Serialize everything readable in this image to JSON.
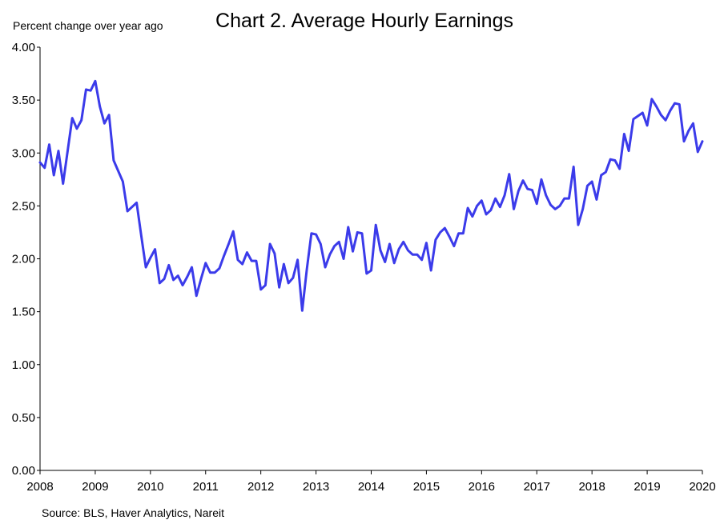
{
  "chart_data": {
    "type": "line",
    "title": "Chart 2. Average Hourly Earnings",
    "ylabel": "Percent change over year ago",
    "xlabel": "",
    "source": "Source: BLS, Haver Analytics, Nareit",
    "ylim": [
      0,
      4
    ],
    "xlim": [
      2008,
      2020
    ],
    "y_ticks": [
      "0.00",
      "0.50",
      "1.00",
      "1.50",
      "2.00",
      "2.50",
      "3.00",
      "3.50",
      "4.00"
    ],
    "x_ticks": [
      "2008",
      "2009",
      "2010",
      "2011",
      "2012",
      "2013",
      "2014",
      "2015",
      "2016",
      "2017",
      "2018",
      "2019",
      "2020"
    ],
    "grid": false,
    "color": "#3b3bea",
    "series": [
      {
        "x_start": "2008-01",
        "frequency": "monthly",
        "values": [
          2.91,
          2.86,
          3.08,
          2.79,
          3.02,
          2.71,
          3.02,
          3.33,
          3.23,
          3.31,
          3.6,
          3.59,
          3.68,
          3.44,
          3.28,
          3.36,
          2.93,
          2.83,
          2.73,
          2.45,
          2.49,
          2.53,
          2.22,
          1.92,
          2.01,
          2.09,
          1.77,
          1.81,
          1.94,
          1.8,
          1.84,
          1.75,
          1.83,
          1.92,
          1.65,
          1.81,
          1.96,
          1.87,
          1.87,
          1.91,
          2.03,
          2.14,
          2.26,
          1.99,
          1.95,
          2.06,
          1.98,
          1.98,
          1.71,
          1.75,
          2.14,
          2.05,
          1.73,
          1.95,
          1.77,
          1.82,
          1.99,
          1.51,
          1.9,
          2.24,
          2.23,
          2.14,
          1.92,
          2.04,
          2.12,
          2.16,
          2.0,
          2.3,
          2.07,
          2.25,
          2.24,
          1.86,
          1.89,
          2.32,
          2.08,
          1.97,
          2.14,
          1.96,
          2.09,
          2.16,
          2.08,
          2.04,
          2.04,
          1.99,
          2.15,
          1.89,
          2.18,
          2.25,
          2.29,
          2.21,
          2.12,
          2.24,
          2.24,
          2.48,
          2.4,
          2.5,
          2.55,
          2.42,
          2.46,
          2.57,
          2.49,
          2.6,
          2.8,
          2.47,
          2.64,
          2.74,
          2.66,
          2.65,
          2.52,
          2.75,
          2.6,
          2.51,
          2.47,
          2.5,
          2.57,
          2.57,
          2.87,
          2.32,
          2.47,
          2.69,
          2.73,
          2.56,
          2.79,
          2.82,
          2.94,
          2.93,
          2.85,
          3.18,
          3.02,
          3.32,
          3.35,
          3.38,
          3.26,
          3.51,
          3.44,
          3.36,
          3.31,
          3.4,
          3.47,
          3.46,
          3.11,
          3.21,
          3.28,
          3.01,
          3.11
        ]
      }
    ]
  }
}
